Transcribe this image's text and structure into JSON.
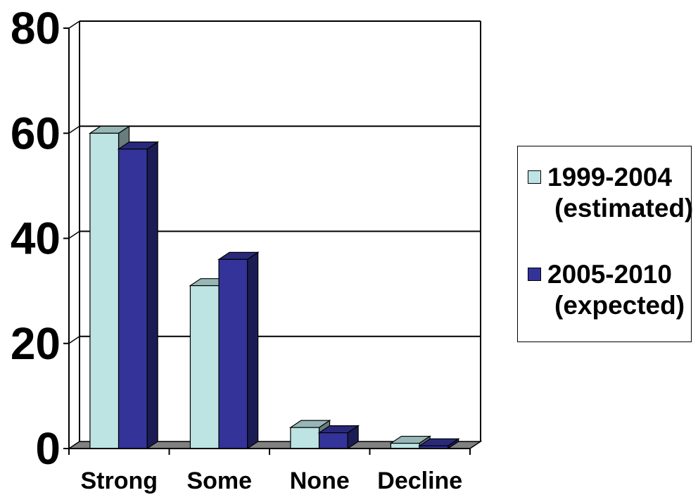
{
  "chart_data": {
    "type": "bar",
    "style": "3d-clustered-column",
    "categories": [
      "Strong",
      "Some",
      "None",
      "Decline"
    ],
    "series": [
      {
        "name": "1999-2004 (estimated)",
        "values": [
          60,
          31,
          4,
          1
        ],
        "color": "#BDE3E3"
      },
      {
        "name": "2005-2010 (expected)",
        "values": [
          57,
          36,
          3,
          0.5
        ],
        "color": "#33339A"
      }
    ],
    "title": "",
    "xlabel": "",
    "ylabel": "",
    "ylim": [
      0,
      80
    ],
    "yticks": [
      "0",
      "20",
      "40",
      "60",
      "80"
    ],
    "grid": true,
    "legend_position": "right"
  },
  "legend": {
    "items": [
      {
        "line1": "1999-2004",
        "line2": "(estimated)"
      },
      {
        "line1": "2005-2010",
        "line2": "(expected)"
      }
    ]
  },
  "colors": {
    "series1": "#BDE3E3",
    "series2": "#33339A",
    "floor": "#808080",
    "grid": "#000000"
  }
}
